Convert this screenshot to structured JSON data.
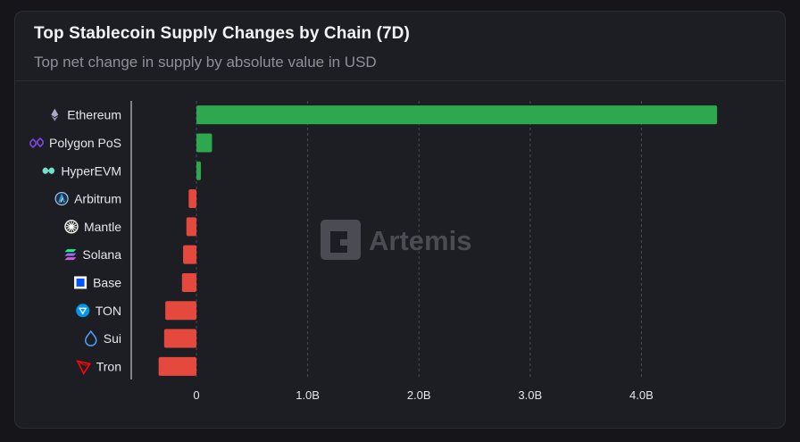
{
  "header": {
    "title": "Top Stablecoin Supply Changes by Chain (7D)",
    "subtitle": "Top net change in supply by absolute value in USD"
  },
  "watermark": {
    "text": "Artemis"
  },
  "colors": {
    "positive": "#2ea84f",
    "negative": "#e5483c",
    "grid": "#4a4b55",
    "axis": "#e6e6ea"
  },
  "chart_data": {
    "type": "bar",
    "orientation": "horizontal",
    "title": "Top Stablecoin Supply Changes by Chain (7D)",
    "subtitle": "Top net change in supply by absolute value in USD",
    "categories": [
      "Ethereum",
      "Polygon PoS",
      "HyperEVM",
      "Arbitrum",
      "Mantle",
      "Solana",
      "Base",
      "TON",
      "Sui",
      "Tron"
    ],
    "icons": [
      "ethereum-icon",
      "polygon-icon",
      "hyperevm-icon",
      "arbitrum-icon",
      "mantle-icon",
      "solana-icon",
      "base-icon",
      "ton-icon",
      "sui-icon",
      "tron-icon"
    ],
    "values": [
      4.68,
      0.14,
      0.04,
      -0.07,
      -0.09,
      -0.12,
      -0.13,
      -0.28,
      -0.29,
      -0.34
    ],
    "value_unit": "B USD",
    "xticks": [
      0,
      1,
      2,
      3,
      4
    ],
    "xtick_labels": [
      "0",
      "1.0B",
      "2.0B",
      "3.0B",
      "4.0B"
    ],
    "xlim": [
      -0.45,
      4.9
    ],
    "grid": "vertical dashed",
    "legend": "none"
  }
}
